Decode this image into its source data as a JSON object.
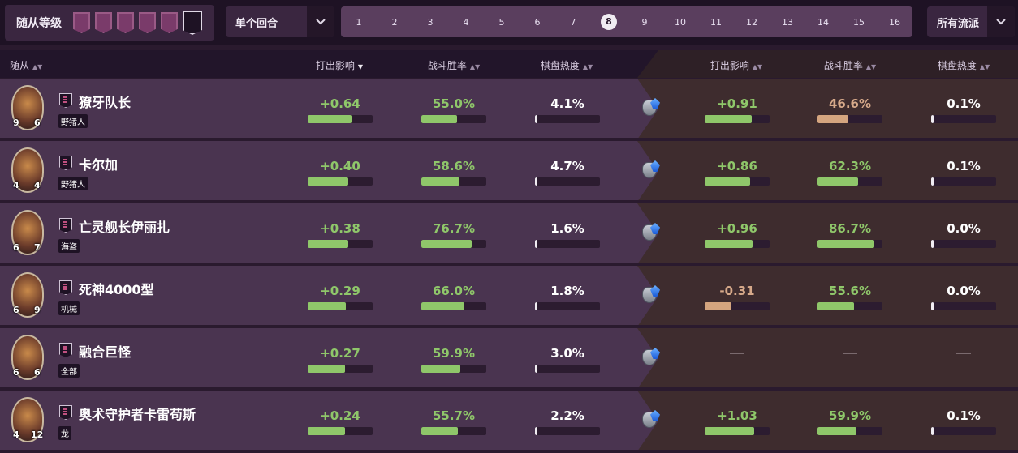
{
  "filters": {
    "tier_label": "随从等级",
    "tier_icons": [
      "tier-1",
      "tier-2",
      "tier-3",
      "tier-4",
      "tier-5",
      "tier-6"
    ],
    "active_tier_index": 5,
    "round_mode": "单个回合",
    "turns": [
      "1",
      "2",
      "3",
      "4",
      "5",
      "6",
      "7",
      "8",
      "9",
      "10",
      "11",
      "12",
      "13",
      "14",
      "15",
      "16"
    ],
    "active_turn": "8",
    "strategy": "所有流派"
  },
  "columns": {
    "minion": "随从",
    "left": [
      "打出影响",
      "战斗胜率",
      "棋盘热度"
    ],
    "right": [
      "打出影响",
      "战斗胜率",
      "棋盘热度"
    ],
    "sorted_column": "打出影响"
  },
  "colors": {
    "positive": "#8fc76a",
    "negative": "#d6a98a",
    "accent_bar_green": "#8fc76a",
    "accent_bar_tan": "#d4a57f"
  },
  "rows": [
    {
      "name": "獠牙队长",
      "tribe": "野猪人",
      "attack": "9",
      "health": "6",
      "left": {
        "impact": "+0.64",
        "winrate": "55.0%",
        "heat": "4.1%",
        "impact_fill": 0.68,
        "winrate_fill": 0.55,
        "heat_fill": 0.03
      },
      "right": {
        "impact": "+0.91",
        "winrate": "46.6%",
        "heat": "0.1%",
        "impact_fill": 0.72,
        "winrate_fill": 0.47,
        "heat_fill": 0.0,
        "impact_color": "positive",
        "winrate_color": "negative"
      }
    },
    {
      "name": "卡尔加",
      "tribe": "野猪人",
      "attack": "4",
      "health": "4",
      "left": {
        "impact": "+0.40",
        "winrate": "58.6%",
        "heat": "4.7%",
        "impact_fill": 0.62,
        "winrate_fill": 0.59,
        "heat_fill": 0.03
      },
      "right": {
        "impact": "+0.86",
        "winrate": "62.3%",
        "heat": "0.1%",
        "impact_fill": 0.7,
        "winrate_fill": 0.62,
        "heat_fill": 0.0,
        "impact_color": "positive",
        "winrate_color": "positive"
      }
    },
    {
      "name": "亡灵舰长伊丽扎",
      "tribe": "海盗",
      "attack": "6",
      "health": "7",
      "left": {
        "impact": "+0.38",
        "winrate": "76.7%",
        "heat": "1.6%",
        "impact_fill": 0.62,
        "winrate_fill": 0.77,
        "heat_fill": 0.02
      },
      "right": {
        "impact": "+0.96",
        "winrate": "86.7%",
        "heat": "0.0%",
        "impact_fill": 0.74,
        "winrate_fill": 0.87,
        "heat_fill": 0.0,
        "impact_color": "positive",
        "winrate_color": "positive"
      }
    },
    {
      "name": "死神4000型",
      "tribe": "机械",
      "attack": "6",
      "health": "9",
      "left": {
        "impact": "+0.29",
        "winrate": "66.0%",
        "heat": "1.8%",
        "impact_fill": 0.59,
        "winrate_fill": 0.66,
        "heat_fill": 0.02
      },
      "right": {
        "impact": "-0.31",
        "winrate": "55.6%",
        "heat": "0.0%",
        "impact_fill": 0.41,
        "winrate_fill": 0.56,
        "heat_fill": 0.0,
        "impact_color": "negative",
        "winrate_color": "positive"
      }
    },
    {
      "name": "融合巨怪",
      "tribe": "全部",
      "attack": "6",
      "health": "6",
      "left": {
        "impact": "+0.27",
        "winrate": "59.9%",
        "heat": "3.0%",
        "impact_fill": 0.58,
        "winrate_fill": 0.6,
        "heat_fill": 0.03
      },
      "right": {
        "impact": "—",
        "winrate": "—",
        "heat": "—",
        "empty": true
      }
    },
    {
      "name": "奥术守护者卡雷苟斯",
      "tribe": "龙",
      "attack": "4",
      "health": "12",
      "left": {
        "impact": "+0.24",
        "winrate": "55.7%",
        "heat": "2.2%",
        "impact_fill": 0.57,
        "winrate_fill": 0.56,
        "heat_fill": 0.02
      },
      "right": {
        "impact": "+1.03",
        "winrate": "59.9%",
        "heat": "0.1%",
        "impact_fill": 0.76,
        "winrate_fill": 0.6,
        "heat_fill": 0.0,
        "impact_color": "positive",
        "winrate_color": "positive"
      }
    }
  ]
}
